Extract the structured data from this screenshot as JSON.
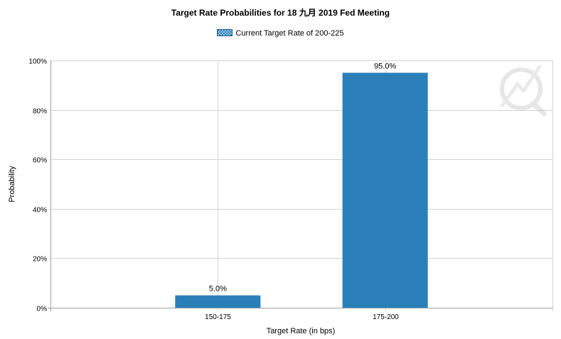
{
  "chart_data": {
    "type": "bar",
    "title": "Target Rate Probabilities for 18 九月 2019  Fed Meeting",
    "legend": {
      "label": "Current Target Rate of 200-225",
      "position": "top-center"
    },
    "xlabel": "Target Rate (in bps)",
    "ylabel": "Probability",
    "categories": [
      "150-175",
      "175-200"
    ],
    "series": [
      {
        "name": "Current Target Rate of 200-225",
        "values": [
          5.0,
          95.0
        ]
      }
    ],
    "data_labels": [
      "5.0%",
      "95.0%"
    ],
    "ylim": [
      0,
      100
    ],
    "yticks": [
      "0%",
      "20%",
      "40%",
      "60%",
      "80%",
      "100%"
    ],
    "grid": true,
    "colors": {
      "bar": "#2a7fb9",
      "grid": "#d4d4d4",
      "axis": "#a0a0a0"
    }
  }
}
